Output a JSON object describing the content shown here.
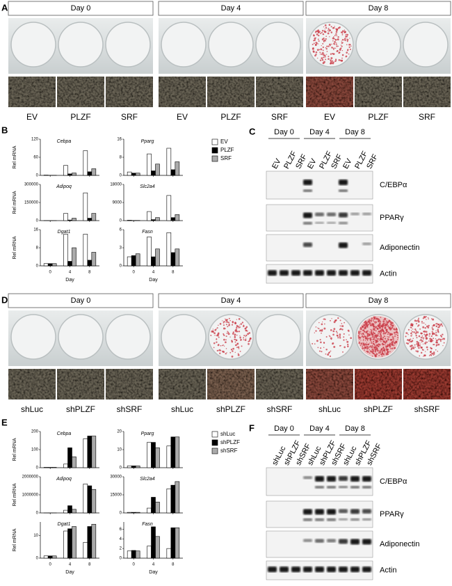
{
  "panel_a": {
    "label": "A",
    "days": [
      "Day 0",
      "Day 4",
      "Day 8"
    ],
    "conditions": [
      "EV",
      "PLZF",
      "SRF"
    ]
  },
  "panel_b": {
    "label": "B",
    "ylabel": "Rel mRNA",
    "xlabel": "Day",
    "categories": [
      "0",
      "4",
      "8"
    ],
    "legend": [
      {
        "name": "EV",
        "color": "#ffffff"
      },
      {
        "name": "PLZF",
        "color": "#000000"
      },
      {
        "name": "SRF",
        "color": "#aaaaaa"
      }
    ],
    "charts": [
      {
        "type": "bar",
        "title": "Cebpa",
        "ylim": [
          0,
          120
        ],
        "yticks": [
          0,
          60,
          120
        ],
        "series": [
          {
            "values": [
              1,
              33,
              82
            ]
          },
          {
            "values": [
              0.5,
              5,
              12
            ]
          },
          {
            "values": [
              0.5,
              8,
              22
            ]
          }
        ]
      },
      {
        "type": "bar",
        "title": "Pparg",
        "ylim": [
          0,
          16
        ],
        "yticks": [
          0,
          8,
          16
        ],
        "series": [
          {
            "values": [
              1.5,
              9.5,
              12
            ]
          },
          {
            "values": [
              1,
              2,
              2.5
            ]
          },
          {
            "values": [
              1,
              5,
              6
            ]
          }
        ]
      },
      {
        "type": "bar",
        "title": "Adipoq",
        "ylim": [
          0,
          300000
        ],
        "yticks": [
          0,
          150000,
          300000
        ],
        "series": [
          {
            "values": [
              1000,
              60000,
              230000
            ]
          },
          {
            "values": [
              500,
              5000,
              20000
            ]
          },
          {
            "values": [
              500,
              20000,
              60000
            ]
          }
        ]
      },
      {
        "type": "bar",
        "title": "Slc2a4",
        "ylim": [
          0,
          18000
        ],
        "yticks": [
          0,
          9000,
          18000
        ],
        "series": [
          {
            "values": [
              200,
              4500,
              12500
            ]
          },
          {
            "values": [
              100,
              500,
              1500
            ]
          },
          {
            "values": [
              100,
              1500,
              3000
            ]
          }
        ]
      },
      {
        "type": "bar",
        "title": "Dgat1",
        "ylim": [
          0,
          16
        ],
        "yticks": [
          0,
          8,
          16
        ],
        "series": [
          {
            "values": [
              1,
              14,
              14
            ]
          },
          {
            "values": [
              1,
              2,
              2.5
            ]
          },
          {
            "values": [
              1,
              8,
              6
            ]
          }
        ]
      },
      {
        "type": "bar",
        "title": "Fasn",
        "ylim": [
          0,
          6
        ],
        "yticks": [
          0,
          3,
          6
        ],
        "series": [
          {
            "values": [
              1.5,
              4.8,
              5.5
            ]
          },
          {
            "values": [
              1.7,
              1.5,
              2.2
            ]
          },
          {
            "values": [
              2,
              2.8,
              2.8
            ]
          }
        ]
      }
    ]
  },
  "panel_c": {
    "label": "C",
    "days": [
      "Day 0",
      "Day 4",
      "Day 8"
    ],
    "lanes": [
      "EV",
      "PLZF",
      "SRF",
      "EV",
      "PLZF",
      "SRF",
      "EV",
      "PLZF",
      "SRF"
    ],
    "proteins": [
      "C/EBPα",
      "PPARγ",
      "Adiponectin",
      "Actin"
    ]
  },
  "panel_d": {
    "label": "D",
    "days": [
      "Day 0",
      "Day 4",
      "Day 8"
    ],
    "conditions": [
      "shLuc",
      "shPLZF",
      "shSRF"
    ]
  },
  "panel_e": {
    "label": "E",
    "ylabel": "Rel mRNA",
    "xlabel": "Day",
    "categories": [
      "0",
      "4",
      "8"
    ],
    "legend": [
      {
        "name": "shLuc",
        "color": "#ffffff"
      },
      {
        "name": "shPLZF",
        "color": "#000000"
      },
      {
        "name": "shSRF",
        "color": "#aaaaaa"
      }
    ],
    "charts": [
      {
        "type": "bar",
        "title": "Cebpa",
        "ylim": [
          0,
          200
        ],
        "yticks": [
          0,
          100,
          200
        ],
        "series": [
          {
            "values": [
              2,
              20,
              160
            ]
          },
          {
            "values": [
              2,
              110,
              175
            ]
          },
          {
            "values": [
              2,
              60,
              175
            ]
          }
        ]
      },
      {
        "type": "bar",
        "title": "Pparg",
        "ylim": [
          0,
          20
        ],
        "yticks": [
          0,
          10,
          20
        ],
        "series": [
          {
            "values": [
              1,
              14,
              12
            ]
          },
          {
            "values": [
              1,
              14,
              17
            ]
          },
          {
            "values": [
              1,
              11,
              17
            ]
          }
        ]
      },
      {
        "type": "bar",
        "title": "Adipoq",
        "ylim": [
          0,
          2000000
        ],
        "yticks": [
          0,
          1000000,
          2000000
        ],
        "series": [
          {
            "values": [
              1000,
              150000,
              1600000
            ]
          },
          {
            "values": [
              1000,
              400000,
              1500000
            ]
          },
          {
            "values": [
              1000,
              200000,
              1300000
            ]
          }
        ]
      },
      {
        "type": "bar",
        "title": "Slc2a4",
        "ylim": [
          0,
          30000
        ],
        "yticks": [
          0,
          15000,
          30000
        ],
        "series": [
          {
            "values": [
              500,
              4000,
              20000
            ]
          },
          {
            "values": [
              500,
              13000,
              23000
            ]
          },
          {
            "values": [
              500,
              9000,
              26000
            ]
          }
        ]
      },
      {
        "type": "bar",
        "title": "Dgat1",
        "ylim": [
          0,
          16
        ],
        "yticks": [
          0,
          10
        ],
        "series": [
          {
            "values": [
              1,
              12,
              7
            ]
          },
          {
            "values": [
              1,
              13,
              14
            ]
          },
          {
            "values": [
              1,
              14,
              15
            ]
          }
        ]
      },
      {
        "type": "bar",
        "title": "Fasn",
        "ylim": [
          0,
          7.5
        ],
        "yticks": [
          0,
          2,
          4,
          6
        ],
        "series": [
          {
            "values": [
              1.5,
              2.5,
              2
            ]
          },
          {
            "values": [
              1.6,
              6.5,
              6.3
            ]
          },
          {
            "values": [
              1.5,
              4.5,
              6.3
            ]
          }
        ]
      }
    ]
  },
  "panel_f": {
    "label": "F",
    "days": [
      "Day 0",
      "Day 4",
      "Day 8"
    ],
    "lanes": [
      "shLuc",
      "shPLZF",
      "shSRF",
      "shLuc",
      "shPLZF",
      "shSRF",
      "shLuc",
      "shPLZF",
      "shSRF"
    ],
    "proteins": [
      "C/EBPα",
      "PPARγ",
      "Adiponectin",
      "Actin"
    ]
  }
}
